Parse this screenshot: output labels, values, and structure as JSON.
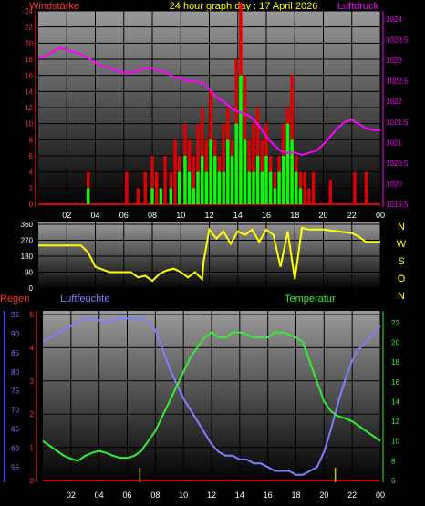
{
  "header": {
    "left_title": "Windstärke",
    "center_title": "24 hour graph day : 17 April 2026",
    "right_title": "Luftdruck"
  },
  "colors": {
    "wind_gust": "#e00000",
    "wind_avg": "#00ff00",
    "pressure": "#ff00ff",
    "wind_dir": "#ffff00",
    "humidity": "#7f7fff",
    "temperature": "#33ee33",
    "rain": "#d00000",
    "rain_marks": "#c8c800",
    "left_axis": "#ff3333",
    "lower_left_axis": "#4444ff"
  },
  "chart_data": [
    {
      "type": "bar",
      "name": "wind-pressure-chart",
      "title": "24 hour graph day : 17 April 2026",
      "left_axis_label": "Windstärke",
      "right_axis_label": "Luftdruck",
      "x_ticks": [
        "02",
        "04",
        "06",
        "08",
        "10",
        "12",
        "14",
        "16",
        "18",
        "20",
        "22",
        "00"
      ],
      "y_left_ticks": [
        "0",
        "2",
        "4",
        "6",
        "8",
        "10",
        "12",
        "14",
        "16",
        "18",
        "20",
        "22",
        "24"
      ],
      "y_left_range": [
        0,
        24
      ],
      "y_right_ticks": [
        "1019,5",
        "1020",
        "1020,5",
        "1021",
        "1021,5",
        "1022",
        "1022,5",
        "1023",
        "1023,5",
        "1024"
      ],
      "y_right_range": [
        1019.5,
        1024.2
      ],
      "pressure": {
        "x": [
          0,
          0.5,
          1,
          1.5,
          2,
          2.5,
          3,
          3.5,
          4,
          4.5,
          5,
          5.5,
          6,
          6.5,
          7,
          7.5,
          8,
          8.5,
          9,
          9.5,
          10,
          10.5,
          11,
          11.5,
          12,
          12.5,
          13,
          13.5,
          14,
          14.5,
          15,
          15.5,
          16,
          16.5,
          17,
          17.5,
          18,
          18.5,
          19,
          19.5,
          20,
          20.5,
          21,
          21.5,
          22,
          22.5,
          23,
          23.5,
          24
        ],
        "values": [
          1023.05,
          1023.1,
          1023.2,
          1023.3,
          1023.25,
          1023.2,
          1023.15,
          1023.05,
          1022.95,
          1022.85,
          1022.8,
          1022.75,
          1022.7,
          1022.7,
          1022.75,
          1022.8,
          1022.8,
          1022.75,
          1022.7,
          1022.6,
          1022.55,
          1022.5,
          1022.5,
          1022.45,
          1022.3,
          1022.1,
          1022.0,
          1021.85,
          1021.75,
          1021.7,
          1021.6,
          1021.4,
          1021.15,
          1020.95,
          1020.8,
          1020.75,
          1020.75,
          1020.7,
          1020.75,
          1020.8,
          1020.95,
          1021.15,
          1021.35,
          1021.5,
          1021.55,
          1021.45,
          1021.35,
          1021.3,
          1021.3
        ]
      },
      "wind_gust": {
        "x": [
          3.5,
          6.2,
          7.0,
          7.5,
          8.0,
          8.3,
          8.6,
          8.9,
          9.3,
          9.6,
          9.9,
          10.3,
          10.6,
          10.9,
          11.2,
          11.5,
          11.8,
          12.1,
          12.4,
          12.7,
          13.0,
          13.3,
          13.6,
          13.9,
          14.2,
          14.5,
          14.8,
          15.1,
          15.4,
          15.7,
          16.0,
          16.3,
          16.6,
          16.9,
          17.2,
          17.5,
          17.8,
          18.1,
          18.4,
          18.7,
          19.0,
          19.3,
          20.5,
          22.2,
          23.0
        ],
        "values": [
          4,
          4,
          2,
          4,
          6,
          4,
          2,
          6,
          4,
          8,
          6,
          10,
          8,
          6,
          10,
          12,
          8,
          14,
          8,
          6,
          10,
          12,
          8,
          18,
          25,
          16,
          8,
          10,
          12,
          8,
          10,
          6,
          4,
          6,
          10,
          12,
          16,
          6,
          4,
          4,
          2,
          4,
          3,
          4,
          4
        ]
      },
      "wind_avg": {
        "x": [
          3.5,
          8.0,
          8.6,
          9.3,
          9.9,
          10.3,
          10.6,
          10.9,
          11.2,
          11.5,
          11.8,
          12.1,
          12.4,
          12.7,
          13.0,
          13.3,
          13.6,
          13.9,
          14.2,
          14.5,
          14.8,
          15.1,
          15.4,
          15.7,
          16.0,
          16.3,
          16.6,
          16.9,
          17.2,
          17.5,
          17.8,
          18.1,
          18.4
        ],
        "values": [
          2,
          2,
          2,
          2,
          4,
          6,
          4,
          2,
          4,
          6,
          4,
          8,
          6,
          4,
          4,
          8,
          6,
          10,
          16,
          8,
          4,
          4,
          6,
          4,
          6,
          4,
          2,
          4,
          6,
          10,
          8,
          4,
          2
        ]
      }
    },
    {
      "type": "line",
      "name": "wind-direction-chart",
      "y_ticks": [
        "0",
        "90",
        "180",
        "270",
        "360"
      ],
      "y_range": [
        0,
        360
      ],
      "compass_labels": [
        "N",
        "W",
        "S",
        "O",
        "N"
      ],
      "x": [
        0,
        1,
        2,
        3,
        3.5,
        4,
        5,
        6,
        6.5,
        7,
        7.5,
        8,
        8.5,
        9,
        9.5,
        10,
        10.5,
        11,
        11.5,
        11.6,
        12,
        12.5,
        13,
        13.5,
        14,
        14.5,
        15,
        15.5,
        16,
        16.5,
        17,
        17.5,
        18,
        18.5,
        19,
        19.5,
        20,
        21,
        22,
        22.5,
        23,
        24
      ],
      "values": [
        240,
        240,
        240,
        240,
        200,
        120,
        90,
        90,
        90,
        60,
        70,
        40,
        80,
        100,
        110,
        90,
        60,
        90,
        50,
        150,
        330,
        280,
        320,
        250,
        320,
        300,
        330,
        260,
        330,
        300,
        120,
        320,
        50,
        340,
        330,
        330,
        330,
        320,
        310,
        290,
        260,
        260
      ]
    },
    {
      "type": "line",
      "name": "humidity-temperature-chart",
      "legend": [
        "Regen",
        "Luftfeuchte",
        "Temperatur"
      ],
      "x_ticks": [
        "02",
        "04",
        "06",
        "08",
        "10",
        "12",
        "14",
        "16",
        "18",
        "20",
        "22",
        "00"
      ],
      "y_rain_ticks": [
        "0",
        "1",
        "2",
        "3",
        "4",
        "5"
      ],
      "y_rain_range": [
        0,
        5
      ],
      "y_humidity_ticks": [
        "55",
        "60",
        "65",
        "70",
        "75",
        "80",
        "85",
        "90",
        "95"
      ],
      "y_humidity_range": [
        51.5,
        95.5
      ],
      "y_temperature_ticks": [
        "6",
        "8",
        "10",
        "12",
        "14",
        "16",
        "18",
        "20",
        "22"
      ],
      "y_temperature_range": [
        6,
        23
      ],
      "humidity": {
        "x": [
          0,
          0.5,
          1,
          1.5,
          2,
          2.5,
          3,
          3.5,
          4,
          4.5,
          5,
          5.5,
          6,
          6.5,
          7,
          7.5,
          8,
          8.5,
          9,
          9.5,
          10,
          10.5,
          11,
          11.5,
          12,
          12.5,
          13,
          13.5,
          14,
          14.5,
          15,
          15.5,
          16,
          16.5,
          17,
          17.5,
          18,
          18.5,
          19,
          19.5,
          20,
          20.5,
          21,
          21.5,
          22,
          22.5,
          23,
          23.5,
          24
        ],
        "values": [
          88,
          89,
          90,
          91,
          92,
          93,
          94,
          94,
          93.5,
          93,
          93.5,
          94,
          94,
          94,
          94,
          93,
          91,
          86,
          81,
          77,
          73,
          70,
          67,
          64,
          61,
          59,
          58,
          58,
          57,
          57,
          56,
          56,
          55,
          54,
          54,
          54,
          53,
          53,
          54,
          55,
          59,
          65,
          72,
          78,
          83,
          86,
          88,
          90,
          92
        ]
      },
      "temperature": {
        "x": [
          0,
          0.5,
          1,
          1.5,
          2,
          2.5,
          3,
          3.5,
          4,
          4.5,
          5,
          5.5,
          6,
          6.5,
          7,
          7.5,
          8,
          8.5,
          9,
          9.5,
          10,
          10.5,
          11,
          11.5,
          12,
          12.5,
          13,
          13.5,
          14,
          14.5,
          15,
          15.5,
          16,
          16.5,
          17,
          17.5,
          18,
          18.5,
          19,
          19.5,
          20,
          20.5,
          21,
          21.5,
          22,
          22.5,
          23,
          23.5,
          24
        ],
        "values": [
          10,
          9.5,
          9,
          8.5,
          8.2,
          8,
          8.5,
          8.8,
          9,
          8.8,
          8.5,
          8.3,
          8.3,
          8.5,
          9,
          10,
          11,
          12.5,
          14,
          15.5,
          17,
          18.5,
          19.5,
          20.5,
          21,
          20.5,
          20.5,
          21,
          21,
          20.8,
          20.5,
          20.5,
          20.5,
          21,
          21,
          20.8,
          20.5,
          20,
          18,
          16,
          14,
          13,
          12.5,
          12.3,
          12,
          11.5,
          11,
          10.5,
          10
        ]
      },
      "rain_marks_x": [
        6.9,
        20.8
      ]
    }
  ]
}
